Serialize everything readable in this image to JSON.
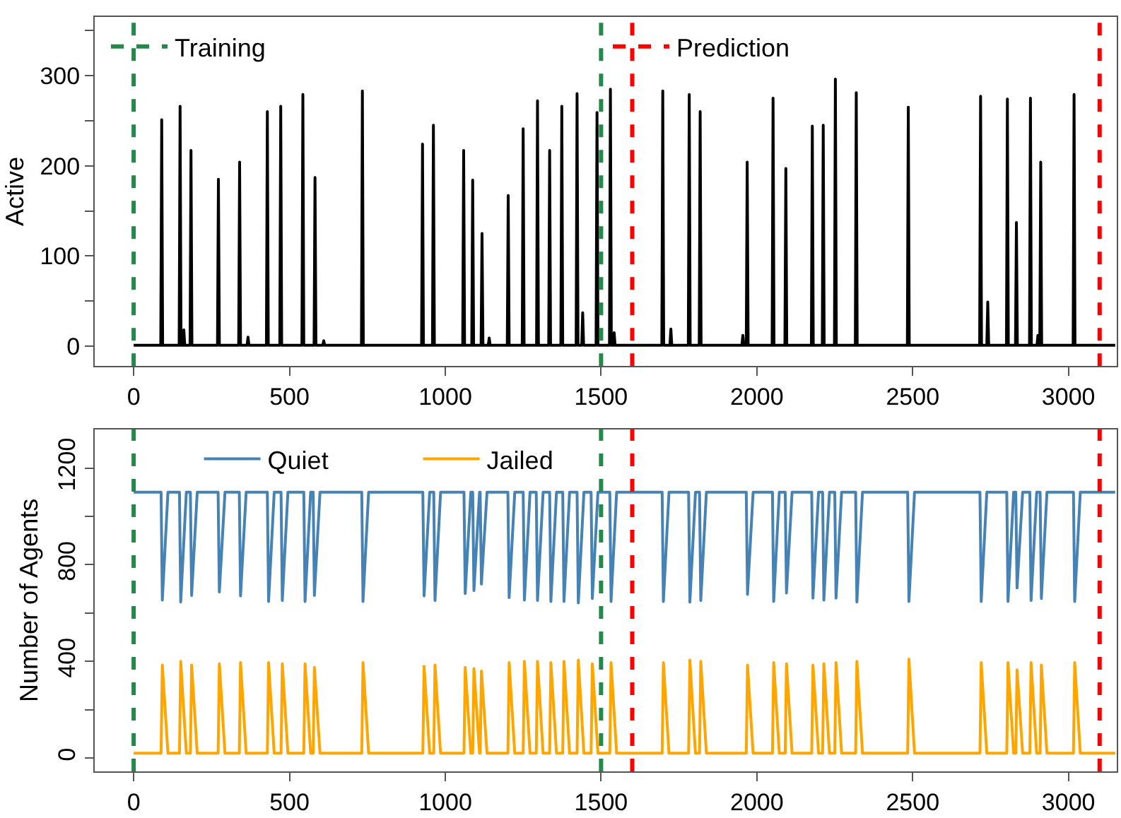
{
  "chart_data": [
    {
      "type": "line",
      "ylabel": "Active",
      "xlim": [
        -125,
        3155
      ],
      "xticks": [
        0,
        500,
        1000,
        1500,
        2000,
        2500,
        3000
      ],
      "ylim": [
        -22,
        365
      ],
      "yticks": [
        0,
        {
          "value": 50,
          "label": null
        },
        100,
        {
          "value": 150,
          "label": null
        },
        200,
        {
          "value": 250,
          "label": null
        },
        300,
        {
          "value": 350,
          "label": null
        }
      ],
      "legend": "top",
      "series": [
        {
          "color": "#000000",
          "x": [
            0,
            87,
            90,
            93,
            146,
            149,
            152,
            158,
            161,
            164,
            181,
            184,
            187,
            269,
            272,
            275,
            337,
            340,
            343,
            364,
            367,
            370,
            426,
            429,
            432,
            469,
            472,
            475,
            540,
            543,
            546,
            579,
            582,
            585,
            607,
            610,
            613,
            731,
            734,
            737,
            924,
            927,
            930,
            959,
            962,
            965,
            1056,
            1059,
            1062,
            1085,
            1088,
            1091,
            1115,
            1118,
            1121,
            1138,
            1141,
            1144,
            1199,
            1202,
            1205,
            1247,
            1250,
            1253,
            1293,
            1296,
            1299,
            1332,
            1335,
            1338,
            1371,
            1374,
            1377,
            1420,
            1423,
            1426,
            1438,
            1441,
            1444,
            1484,
            1487,
            1490,
            1527,
            1530,
            1533,
            1539,
            1542,
            1545,
            1695,
            1698,
            1701,
            1721,
            1724,
            1727,
            1780,
            1783,
            1786,
            1815,
            1818,
            1821,
            1952,
            1955,
            1958,
            1966,
            1969,
            1972,
            2049,
            2052,
            2055,
            2090,
            2093,
            2096,
            2175,
            2178,
            2181,
            2210,
            2213,
            2216,
            2249,
            2252,
            2255,
            2316,
            2319,
            2322,
            2483,
            2486,
            2489,
            2715,
            2718,
            2721,
            2738,
            2741,
            2744,
            2801,
            2804,
            2807,
            2830,
            2833,
            2836,
            2875,
            2878,
            2881,
            2899,
            2902,
            2905,
            2908,
            2911,
            2914,
            3015,
            3018,
            3021,
            3150
          ],
          "values": [
            1,
            1,
            251,
            1,
            1,
            266,
            1,
            1,
            18,
            1,
            1,
            217,
            1,
            1,
            185,
            1,
            1,
            204,
            1,
            1,
            10,
            1,
            1,
            260,
            1,
            1,
            266,
            1,
            1,
            279,
            1,
            1,
            187,
            1,
            1,
            6,
            1,
            1,
            283,
            1,
            1,
            224,
            1,
            1,
            245,
            1,
            1,
            217,
            1,
            1,
            184,
            1,
            1,
            125,
            1,
            1,
            9,
            1,
            1,
            167,
            1,
            1,
            241,
            1,
            1,
            272,
            1,
            1,
            217,
            1,
            1,
            266,
            1,
            1,
            280,
            1,
            1,
            37,
            1,
            1,
            259,
            1,
            1,
            285,
            1,
            1,
            15,
            1,
            1,
            283,
            1,
            1,
            19,
            1,
            1,
            279,
            1,
            1,
            260,
            1,
            1,
            12,
            1,
            1,
            204,
            1,
            1,
            275,
            1,
            1,
            197,
            1,
            1,
            244,
            1,
            1,
            245,
            1,
            1,
            296,
            1,
            1,
            281,
            1,
            1,
            265,
            1,
            1,
            277,
            1,
            1,
            49,
            1,
            1,
            274,
            1,
            1,
            137,
            1,
            1,
            275,
            1,
            1,
            12,
            1,
            1,
            204,
            1,
            1,
            279,
            1,
            1
          ]
        }
      ],
      "ref_lines": [
        {
          "axis": "x",
          "value": 0,
          "label": "Training",
          "color": "#24884a",
          "line_style": "dashed"
        },
        {
          "axis": "x",
          "value": 1500,
          "color": "#24884a",
          "line_style": "dashed"
        },
        {
          "axis": "x",
          "value": 1600,
          "label": "Prediction",
          "color": "#ff0000",
          "line_style": "dashed"
        },
        {
          "axis": "x",
          "value": 3100,
          "color": "#ff0000",
          "line_style": "dashed"
        }
      ]
    },
    {
      "type": "line",
      "ylabel": "Number of Agents",
      "xlim": [
        -125,
        3155
      ],
      "xticks": [
        0,
        500,
        1000,
        1500,
        2000,
        2500,
        3000
      ],
      "ylim": [
        -55,
        1360
      ],
      "yticks": [
        0,
        {
          "value": 200,
          "label": null
        },
        400,
        {
          "value": 600,
          "label": null
        },
        800,
        {
          "value": 1000,
          "label": null
        },
        1200
      ],
      "legend": "top left",
      "series": [
        {
          "name": "Quiet",
          "color": "#4682b4",
          "x": [
            0,
            88,
            92,
            110,
            147,
            151,
            169,
            182,
            186,
            204,
            271,
            275,
            293,
            339,
            343,
            361,
            429,
            433,
            451,
            473,
            477,
            495,
            546,
            550,
            568,
            576,
            580,
            598,
            732,
            736,
            754,
            928,
            932,
            950,
            963,
            967,
            985,
            1060,
            1064,
            1082,
            1088,
            1092,
            1110,
            1112,
            1116,
            1134,
            1201,
            1205,
            1223,
            1250,
            1254,
            1272,
            1292,
            1296,
            1314,
            1335,
            1339,
            1357,
            1377,
            1381,
            1399,
            1423,
            1427,
            1445,
            1468,
            1472,
            1490,
            1528,
            1532,
            1550,
            1696,
            1700,
            1718,
            1781,
            1785,
            1803,
            1816,
            1820,
            1838,
            1966,
            1970,
            1988,
            2050,
            2054,
            2072,
            2091,
            2095,
            2113,
            2176,
            2180,
            2198,
            2211,
            2215,
            2233,
            2250,
            2254,
            2272,
            2317,
            2321,
            2339,
            2484,
            2488,
            2506,
            2716,
            2720,
            2738,
            2802,
            2806,
            2824,
            2831,
            2835,
            2853,
            2876,
            2880,
            2898,
            2909,
            2913,
            2931,
            3016,
            3020,
            3038,
            3150
          ],
          "values": [
            1100,
            1100,
            654,
            1100,
            1100,
            646,
            1100,
            1100,
            673,
            1100,
            1100,
            687,
            1100,
            1100,
            671,
            1100,
            1100,
            648,
            1100,
            1100,
            652,
            1100,
            1100,
            648,
            1100,
            1100,
            673,
            1100,
            1100,
            648,
            1100,
            1100,
            671,
            1100,
            1100,
            652,
            1100,
            1100,
            681,
            1100,
            1100,
            693,
            1100,
            1100,
            720,
            1100,
            1100,
            664,
            1100,
            1100,
            654,
            1100,
            1100,
            652,
            1100,
            1100,
            648,
            1100,
            1100,
            648,
            1100,
            1100,
            642,
            1100,
            1100,
            660,
            1100,
            1100,
            648,
            1100,
            1100,
            648,
            1100,
            1100,
            645,
            1100,
            1100,
            652,
            1100,
            1100,
            677,
            1100,
            1100,
            648,
            1100,
            1100,
            683,
            1100,
            1100,
            662,
            1100,
            1100,
            654,
            1100,
            1100,
            662,
            1100,
            1100,
            646,
            1100,
            1100,
            648,
            1100,
            1100,
            648,
            1100,
            1100,
            648,
            1100,
            1100,
            704,
            1100,
            1100,
            652,
            1100,
            1100,
            660,
            1100,
            1100,
            648,
            1100,
            1100
          ]
        },
        {
          "name": "Jailed",
          "color": "#ffa500",
          "x": [
            0,
            88,
            92,
            110,
            147,
            151,
            169,
            182,
            186,
            204,
            271,
            275,
            293,
            339,
            343,
            361,
            429,
            433,
            451,
            473,
            477,
            495,
            546,
            550,
            568,
            576,
            580,
            598,
            732,
            736,
            754,
            928,
            932,
            950,
            963,
            967,
            985,
            1060,
            1064,
            1082,
            1088,
            1092,
            1110,
            1112,
            1116,
            1134,
            1201,
            1205,
            1223,
            1250,
            1254,
            1272,
            1292,
            1296,
            1314,
            1335,
            1339,
            1357,
            1377,
            1381,
            1399,
            1423,
            1427,
            1445,
            1468,
            1472,
            1490,
            1528,
            1532,
            1550,
            1696,
            1700,
            1718,
            1781,
            1785,
            1803,
            1816,
            1820,
            1838,
            1966,
            1970,
            1988,
            2050,
            2054,
            2072,
            2091,
            2095,
            2113,
            2176,
            2180,
            2198,
            2211,
            2215,
            2233,
            2250,
            2254,
            2272,
            2317,
            2321,
            2339,
            2484,
            2488,
            2506,
            2716,
            2720,
            2738,
            2802,
            2806,
            2824,
            2831,
            2835,
            2853,
            2876,
            2880,
            2898,
            2909,
            2913,
            2931,
            3016,
            3020,
            3038,
            3150
          ],
          "values": [
            20,
            20,
            385,
            20,
            20,
            400,
            20,
            20,
            385,
            20,
            20,
            390,
            20,
            20,
            395,
            20,
            20,
            395,
            20,
            20,
            390,
            20,
            20,
            390,
            20,
            20,
            375,
            20,
            20,
            395,
            20,
            20,
            380,
            20,
            20,
            385,
            20,
            20,
            375,
            20,
            20,
            370,
            20,
            20,
            360,
            20,
            20,
            395,
            20,
            20,
            400,
            20,
            20,
            400,
            20,
            20,
            395,
            20,
            20,
            400,
            20,
            20,
            405,
            20,
            20,
            390,
            20,
            20,
            395,
            20,
            20,
            395,
            20,
            20,
            405,
            20,
            20,
            400,
            20,
            20,
            385,
            20,
            20,
            395,
            20,
            20,
            390,
            20,
            20,
            385,
            20,
            20,
            390,
            20,
            20,
            395,
            20,
            20,
            400,
            20,
            20,
            410,
            20,
            20,
            395,
            20,
            20,
            395,
            20,
            20,
            365,
            20,
            20,
            395,
            20,
            20,
            385,
            20,
            20,
            395,
            20,
            20
          ]
        }
      ],
      "ref_lines": [
        {
          "axis": "x",
          "value": 0,
          "color": "#24884a",
          "line_style": "dashed"
        },
        {
          "axis": "x",
          "value": 1500,
          "color": "#24884a",
          "line_style": "dashed"
        },
        {
          "axis": "x",
          "value": 1600,
          "color": "#ff0000",
          "line_style": "dashed"
        },
        {
          "axis": "x",
          "value": 3100,
          "color": "#ff0000",
          "line_style": "dashed"
        }
      ]
    }
  ]
}
